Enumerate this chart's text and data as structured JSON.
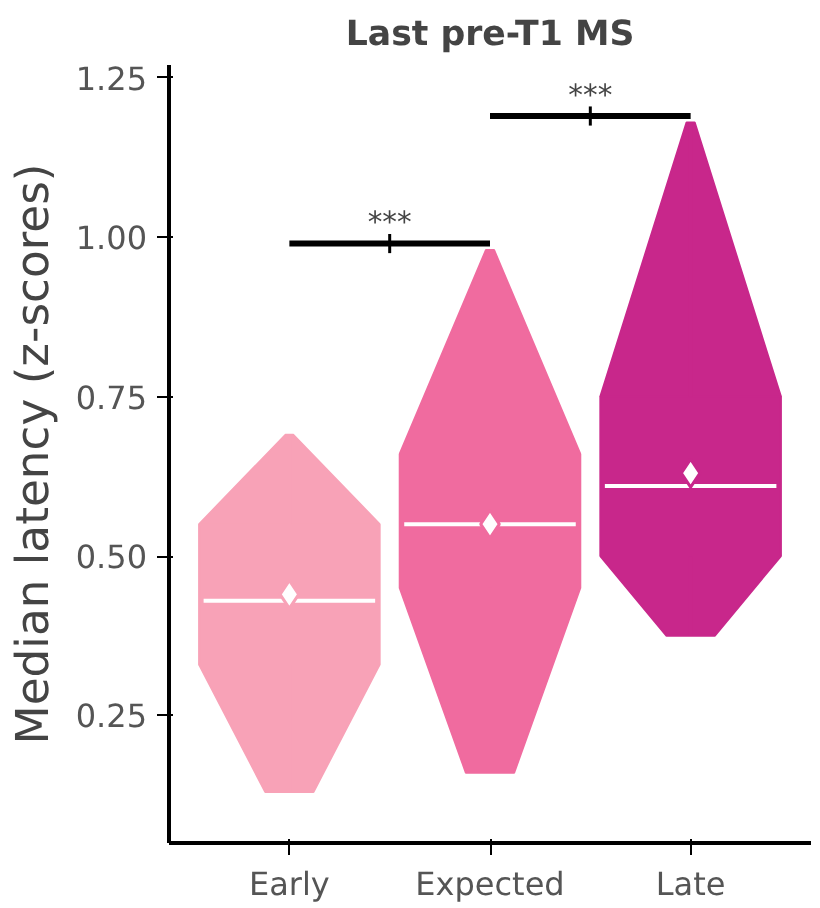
{
  "chart_data": {
    "type": "box",
    "title": "Last pre-T1 MS",
    "ylabel": "Median latency (z-scores)",
    "categories": [
      "Early",
      "Expected",
      "Late"
    ],
    "series": [
      {
        "colors": [
          "#f8a2b7",
          "#f06b9f",
          "#c8278b"
        ],
        "boxes": [
          {
            "low": 0.13,
            "q1": 0.33,
            "median": 0.43,
            "q3": 0.55,
            "high": 0.69,
            "mean": 0.44
          },
          {
            "low": 0.16,
            "q1": 0.45,
            "median": 0.55,
            "q3": 0.66,
            "high": 0.98,
            "mean": 0.55
          },
          {
            "low": 0.375,
            "q1": 0.5,
            "median": 0.61,
            "q3": 0.75,
            "high": 1.18,
            "mean": 0.63
          }
        ]
      }
    ],
    "ylim": [
      0.05,
      1.27
    ],
    "yticks": [
      {
        "value": 0.25,
        "label": "0.25"
      },
      {
        "value": 0.5,
        "label": "0.50"
      },
      {
        "value": 0.75,
        "label": "0.75"
      },
      {
        "value": 1.0,
        "label": "1.00"
      },
      {
        "value": 1.25,
        "label": "1.25"
      }
    ],
    "grid": false,
    "annotations": [
      "***",
      "***"
    ]
  }
}
